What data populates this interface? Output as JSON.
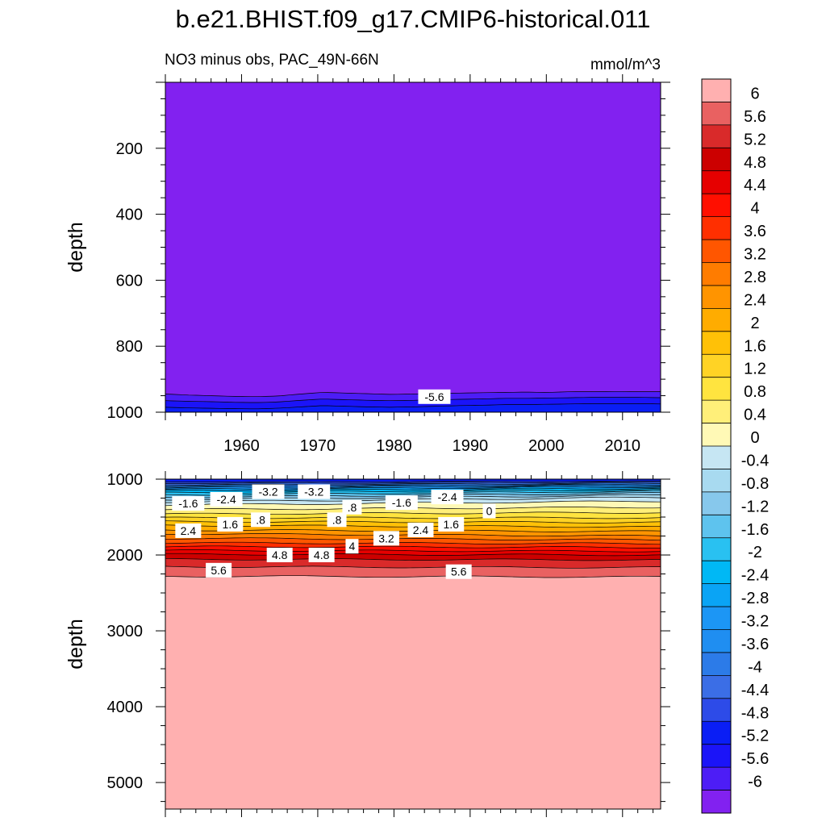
{
  "title": "b.e21.BHIST.f09_g17.CMIP6-historical.011",
  "subtitle": "NO3 minus obs, PAC_49N-66N",
  "units": "mmol/m^3",
  "chart_data": [
    {
      "type": "contour",
      "name": "upper-panel",
      "xlabel": "",
      "ylabel": "depth",
      "xlim": [
        1950,
        2015
      ],
      "ylim": [
        1000,
        0
      ],
      "x_ticks": [
        1960,
        1970,
        1980,
        1990,
        2000,
        2010
      ],
      "x_tick_labels": [
        "1960",
        "1970",
        "1980",
        "1990",
        "2000",
        "2010"
      ],
      "y_ticks": [
        200,
        400,
        600,
        800,
        1000
      ],
      "y_tick_labels": [
        "200",
        "400",
        "600",
        "800",
        "1000"
      ],
      "bands": [
        {
          "level": -6.0,
          "top": [
            0,
            0
          ],
          "bottom": [
            945,
            948,
            950,
            952,
            953,
            951,
            945,
            940,
            942,
            944,
            946,
            945,
            943,
            942,
            941,
            940,
            939,
            940,
            938,
            938,
            937,
            938,
            938
          ],
          "color": "#8221f0"
        },
        {
          "level": -5.6,
          "top": [
            945,
            948,
            950,
            952,
            953,
            951,
            945,
            940,
            942,
            944,
            946,
            945,
            943,
            942,
            941,
            940,
            939,
            940,
            938,
            938,
            937,
            938,
            938
          ],
          "bottom": [
            965,
            967,
            968,
            970,
            971,
            969,
            964,
            960,
            962,
            964,
            965,
            964,
            962,
            961,
            960,
            958,
            958,
            957,
            956,
            955,
            955,
            955,
            956
          ],
          "color": "#4d1df6"
        },
        {
          "level": -5.2,
          "top": [
            965,
            967,
            968,
            970,
            971,
            969,
            964,
            960,
            962,
            964,
            965,
            964,
            962,
            961,
            960,
            958,
            958,
            957,
            956,
            955,
            955,
            955,
            956
          ],
          "bottom": [
            985,
            987,
            988,
            989,
            990,
            988,
            984,
            980,
            982,
            984,
            985,
            984,
            982,
            980,
            979,
            977,
            977,
            976,
            975,
            974,
            974,
            974,
            975
          ],
          "color": "#1b14f8"
        },
        {
          "level": -4.8,
          "top": [
            985,
            987,
            988,
            989,
            990,
            988,
            984,
            980,
            982,
            984,
            985,
            984,
            982,
            980,
            979,
            977,
            977,
            976,
            975,
            974,
            974,
            974,
            975
          ],
          "bottom": [
            1000,
            1000
          ],
          "color": "#0a1ef5"
        }
      ],
      "labels": [
        {
          "text": "-5.6",
          "x": 1985.3,
          "y": 953
        }
      ]
    },
    {
      "type": "contour",
      "name": "lower-panel",
      "xlabel": "",
      "ylabel": "depth",
      "xlim": [
        1950,
        2015
      ],
      "ylim": [
        5350,
        1000
      ],
      "x_ticks": [
        1960,
        1970,
        1980,
        1990,
        2000,
        2010
      ],
      "y_ticks": [
        1000,
        2000,
        3000,
        4000,
        5000
      ],
      "y_tick_labels": [
        "1000",
        "2000",
        "3000",
        "4000",
        "5000"
      ],
      "levels": [
        -4.8,
        -4.4,
        -4.0,
        -3.6,
        -3.2,
        -2.8,
        -2.4,
        -2.0,
        -1.6,
        -1.2,
        -0.8,
        -0.4,
        0.0,
        0.4,
        0.8,
        1.2,
        1.6,
        2.0,
        2.4,
        2.8,
        3.2,
        3.6,
        4.0,
        4.4,
        4.8,
        5.2,
        5.6,
        6.0
      ],
      "colors": [
        "#0a1ef5",
        "#2d4be8",
        "#3b6ee6",
        "#2c7be8",
        "#1f8ef1",
        "#1c96f5",
        "#0aa4f5",
        "#00b8f5",
        "#29c1f1",
        "#5ec3ee",
        "#87c8ec",
        "#a8daf0",
        "#c6e6f3",
        "#fff9b6",
        "#ffef79",
        "#ffe43f",
        "#ffd325",
        "#ffc107",
        "#ffac00",
        "#ff9400",
        "#ff7c00",
        "#ff5600",
        "#ff2f00",
        "#ff0f00",
        "#e60000",
        "#cc0000",
        "#d92a2a",
        "#e96161",
        "#ffb0b0"
      ],
      "boundary_left": [
        1035,
        1055,
        1075,
        1095,
        1115,
        1135,
        1155,
        1180,
        1210,
        1240,
        1270,
        1300,
        1340,
        1400,
        1460,
        1510,
        1560,
        1610,
        1670,
        1720,
        1780,
        1840,
        1890,
        1940,
        1990,
        2055,
        2155,
        2280
      ],
      "boundary_right": [
        1025,
        1040,
        1055,
        1070,
        1085,
        1100,
        1120,
        1140,
        1160,
        1185,
        1210,
        1240,
        1290,
        1370,
        1440,
        1510,
        1570,
        1630,
        1690,
        1750,
        1800,
        1850,
        1900,
        1950,
        2000,
        2065,
        2165,
        2290
      ],
      "labels": [
        {
          "text": "-1.6",
          "x": 1953.0,
          "y": 1320
        },
        {
          "text": "-2.4",
          "x": 1958.0,
          "y": 1265
        },
        {
          "text": "-3.2",
          "x": 1963.5,
          "y": 1165
        },
        {
          "text": "-3.2",
          "x": 1969.5,
          "y": 1165
        },
        {
          "text": ".8",
          "x": 1974.5,
          "y": 1370
        },
        {
          "text": "-1.6",
          "x": 1981.0,
          "y": 1310
        },
        {
          "text": "-2.4",
          "x": 1987.0,
          "y": 1235
        },
        {
          "text": "0",
          "x": 1992.5,
          "y": 1420
        },
        {
          "text": "2.4",
          "x": 1953.0,
          "y": 1680
        },
        {
          "text": "1.6",
          "x": 1958.5,
          "y": 1595
        },
        {
          "text": ".8",
          "x": 1962.5,
          "y": 1535
        },
        {
          "text": ".8",
          "x": 1972.5,
          "y": 1535
        },
        {
          "text": "1.6",
          "x": 1987.5,
          "y": 1595
        },
        {
          "text": "2.4",
          "x": 1983.5,
          "y": 1670
        },
        {
          "text": "3.2",
          "x": 1979.0,
          "y": 1780
        },
        {
          "text": "4",
          "x": 1974.5,
          "y": 1885
        },
        {
          "text": "4.8",
          "x": 1965.0,
          "y": 2000
        },
        {
          "text": "4.8",
          "x": 1970.5,
          "y": 2000
        },
        {
          "text": "5.6",
          "x": 1957.0,
          "y": 2200
        },
        {
          "text": "5.6",
          "x": 1988.5,
          "y": 2220
        }
      ]
    },
    {
      "type": "colorbar",
      "name": "colorbar",
      "colors": [
        "#ffb0b0",
        "#e96161",
        "#d92a2a",
        "#cc0000",
        "#e60000",
        "#ff0f00",
        "#ff2f00",
        "#ff5600",
        "#ff7c00",
        "#ff9400",
        "#ffac00",
        "#ffc107",
        "#ffd325",
        "#ffe43f",
        "#ffef79",
        "#fff9b6",
        "#c6e6f3",
        "#a8daf0",
        "#87c8ec",
        "#5ec3ee",
        "#29c1f1",
        "#00b8f5",
        "#0aa4f5",
        "#1c96f5",
        "#1f8ef1",
        "#2c7be8",
        "#3b6ee6",
        "#2d4be8",
        "#0a1ef5",
        "#1b14f8",
        "#4d1df6",
        "#8221f0"
      ],
      "tick_labels": [
        "6",
        "5.6",
        "5.2",
        "4.8",
        "4.4",
        "4",
        "3.6",
        "3.2",
        "2.8",
        "2.4",
        "2",
        "1.6",
        "1.2",
        "0.8",
        "0.4",
        "0",
        "-0.4",
        "-0.8",
        "-1.2",
        "-1.6",
        "-2",
        "-2.4",
        "-2.8",
        "-3.2",
        "-3.6",
        "-4",
        "-4.4",
        "-4.8",
        "-5.2",
        "-5.6",
        "-6"
      ]
    }
  ]
}
